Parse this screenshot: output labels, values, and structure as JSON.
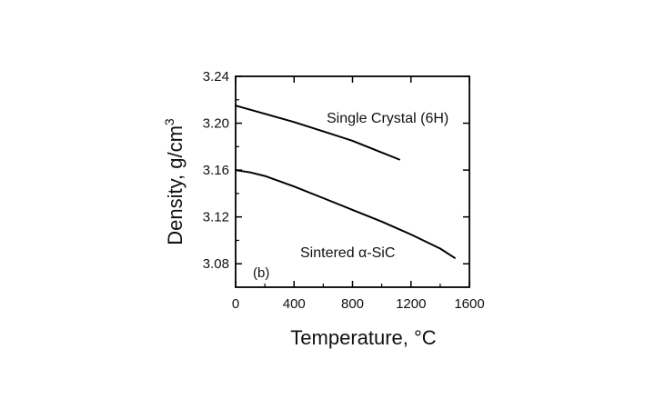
{
  "chart_data": {
    "type": "line",
    "panel_label": "(b)",
    "xlabel": "Temperature, °C",
    "ylabel": "Density, g/cm",
    "ylabel_superscript": "3",
    "xlim": [
      0,
      1600
    ],
    "ylim": [
      3.06,
      3.24
    ],
    "xticks": [
      0,
      400,
      800,
      1200,
      1600
    ],
    "xtick_labels": [
      "0",
      "400",
      "800",
      "1200",
      "1600"
    ],
    "yticks": [
      3.08,
      3.12,
      3.16,
      3.2,
      3.24
    ],
    "ytick_labels": [
      "3.08",
      "3.12",
      "3.16",
      "3.20",
      "3.24"
    ],
    "grid": false,
    "series": [
      {
        "name": "Single Crystal (6H)",
        "x": [
          0,
          200,
          400,
          600,
          800,
          1000,
          1120
        ],
        "y": [
          3.215,
          3.208,
          3.201,
          3.193,
          3.185,
          3.175,
          3.169
        ]
      },
      {
        "name": "Sintered α-SiC",
        "x": [
          0,
          100,
          200,
          400,
          600,
          800,
          1000,
          1200,
          1400,
          1500
        ],
        "y": [
          3.16,
          3.158,
          3.155,
          3.146,
          3.136,
          3.126,
          3.116,
          3.105,
          3.093,
          3.085
        ]
      }
    ]
  }
}
